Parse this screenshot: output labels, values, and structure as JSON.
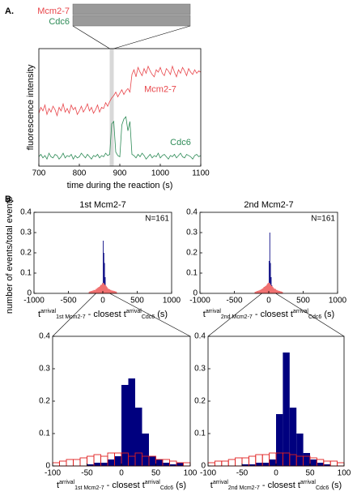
{
  "chart_data": [
    {
      "type": "line",
      "panel_label": "A.",
      "xlabel": "time during the reaction (s)",
      "ylabel": "fluorescence intensity",
      "xlim": [
        700,
        1100
      ],
      "xticks": [
        700,
        800,
        900,
        1000,
        1100
      ],
      "ylim": [
        0,
        100
      ],
      "highlight": [
        875,
        885
      ],
      "annotations": [
        "Mcm2-7",
        "Cdc6"
      ],
      "x": [
        700,
        705,
        710,
        715,
        720,
        725,
        730,
        735,
        740,
        745,
        750,
        755,
        760,
        765,
        770,
        775,
        780,
        785,
        790,
        795,
        800,
        805,
        810,
        815,
        820,
        825,
        830,
        835,
        840,
        845,
        850,
        855,
        860,
        865,
        870,
        875,
        880,
        885,
        890,
        895,
        900,
        905,
        910,
        915,
        920,
        925,
        930,
        935,
        940,
        945,
        950,
        955,
        960,
        965,
        970,
        975,
        980,
        985,
        990,
        995,
        1000,
        1005,
        1010,
        1015,
        1020,
        1025,
        1030,
        1035,
        1040,
        1045,
        1050,
        1055,
        1060,
        1065,
        1070,
        1075,
        1080,
        1085,
        1090,
        1095,
        1100
      ],
      "series": [
        {
          "name": "Mcm2-7",
          "color": "#e8454a",
          "values": [
            45,
            50,
            47,
            52,
            44,
            49,
            46,
            51,
            48,
            43,
            50,
            47,
            53,
            46,
            49,
            45,
            52,
            48,
            50,
            44,
            47,
            51,
            46,
            49,
            53,
            47,
            50,
            45,
            48,
            52,
            46,
            50,
            49,
            54,
            51,
            55,
            58,
            60,
            63,
            59,
            62,
            65,
            61,
            64,
            66,
            63,
            78,
            82,
            76,
            84,
            80,
            77,
            83,
            79,
            85,
            81,
            78,
            76,
            82,
            80,
            84,
            79,
            77,
            83,
            81,
            78,
            85,
            80,
            76,
            82,
            79,
            84,
            81,
            77,
            83,
            80,
            78,
            82,
            79,
            81,
            80
          ]
        },
        {
          "name": "Cdc6",
          "color": "#2e8b57",
          "values": [
            8,
            10,
            7,
            9,
            6,
            11,
            8,
            7,
            10,
            9,
            6,
            8,
            11,
            7,
            9,
            8,
            10,
            6,
            9,
            7,
            8,
            11,
            9,
            7,
            10,
            8,
            6,
            9,
            8,
            10,
            7,
            9,
            8,
            11,
            9,
            10,
            36,
            38,
            12,
            9,
            8,
            35,
            40,
            42,
            30,
            38,
            10,
            9,
            7,
            10,
            8,
            11,
            9,
            6,
            8,
            10,
            7,
            9,
            8,
            11,
            7,
            9,
            10,
            8,
            6,
            9,
            8,
            10,
            7,
            9,
            11,
            8,
            7,
            10,
            9,
            8,
            6,
            9,
            10,
            8,
            9
          ]
        }
      ]
    },
    {
      "type": "histogram",
      "panel_label": "B.",
      "title": "1st Mcm2-7",
      "ylabel": "number of events/total events",
      "annotation": "N=161",
      "xlabel": {
        "t": "t",
        "sup1": "arrival",
        "sub1": "1st Mcm2-7",
        "mid": " - closest t",
        "sup2": "arrival",
        "sub2": "Cdc6",
        "unit": " (s)"
      },
      "xlim": [
        -1000,
        1000
      ],
      "xticks": [
        -1000,
        -500,
        0,
        500,
        1000
      ],
      "ylim": [
        0,
        0.4
      ],
      "yticks": [
        0,
        0.1,
        0.2,
        0.3,
        0.4
      ],
      "bins": [
        -200,
        -190,
        -180,
        -170,
        -160,
        -150,
        -140,
        -130,
        -120,
        -110,
        -100,
        -90,
        -80,
        -70,
        -60,
        -50,
        -40,
        -30,
        -20,
        -10,
        0,
        10,
        20,
        30,
        40,
        50,
        60,
        70,
        80,
        90,
        100,
        110,
        120,
        130,
        140,
        150,
        160,
        170,
        180,
        190,
        200
      ],
      "series": [
        {
          "color": "#00007f",
          "filled": true,
          "values": [
            0,
            0,
            0.003,
            0,
            0,
            0.003,
            0,
            0,
            0.005,
            0,
            0,
            0.003,
            0,
            0.005,
            0,
            0.005,
            0.01,
            0.01,
            0.02,
            0.05,
            0.26,
            0.2,
            0.15,
            0.08,
            0.03,
            0.02,
            0.01,
            0.005,
            0.005,
            0,
            0.003,
            0,
            0.003,
            0,
            0,
            0.003,
            0,
            0,
            0,
            0
          ]
        },
        {
          "color": "#f07070",
          "filled": false,
          "values": [
            0.005,
            0.008,
            0.006,
            0.01,
            0.008,
            0.012,
            0.01,
            0.015,
            0.012,
            0.015,
            0.02,
            0.02,
            0.025,
            0.025,
            0.03,
            0.03,
            0.035,
            0.04,
            0.04,
            0.045,
            0.05,
            0.045,
            0.04,
            0.04,
            0.035,
            0.03,
            0.025,
            0.02,
            0.02,
            0.018,
            0.015,
            0.015,
            0.012,
            0.01,
            0.012,
            0.008,
            0.01,
            0.006,
            0.008,
            0.005
          ]
        }
      ]
    },
    {
      "type": "histogram",
      "title": "2nd Mcm2-7",
      "annotation": "N=161",
      "xlabel": {
        "t": "t",
        "sup1": "arrival",
        "sub1": "2nd Mcm2-7",
        "mid": " - closest t",
        "sup2": "arrival",
        "sub2": "Cdc6",
        "unit": " (s)"
      },
      "xlim": [
        -1000,
        1000
      ],
      "xticks": [
        -1000,
        -500,
        0,
        500,
        1000
      ],
      "ylim": [
        0,
        0.4
      ],
      "yticks": [
        0,
        0.1,
        0.2,
        0.3,
        0.4
      ],
      "bins": [
        -200,
        -190,
        -180,
        -170,
        -160,
        -150,
        -140,
        -130,
        -120,
        -110,
        -100,
        -90,
        -80,
        -70,
        -60,
        -50,
        -40,
        -30,
        -20,
        -10,
        0,
        10,
        20,
        30,
        40,
        50,
        60,
        70,
        80,
        90,
        100,
        110,
        120,
        130,
        140,
        150,
        160,
        170,
        180,
        190,
        200
      ],
      "series": [
        {
          "color": "#00007f",
          "filled": true,
          "values": [
            0,
            0,
            0,
            0.003,
            0,
            0,
            0.003,
            0,
            0,
            0,
            0.003,
            0,
            0.005,
            0,
            0.005,
            0.005,
            0.01,
            0.01,
            0.015,
            0.03,
            0.16,
            0.3,
            0.15,
            0.08,
            0.04,
            0.02,
            0.01,
            0.005,
            0.003,
            0.003,
            0,
            0.003,
            0,
            0,
            0.003,
            0,
            0,
            0,
            0,
            0
          ]
        },
        {
          "color": "#f07070",
          "filled": false,
          "values": [
            0.006,
            0.005,
            0.008,
            0.01,
            0.01,
            0.012,
            0.012,
            0.015,
            0.015,
            0.018,
            0.02,
            0.022,
            0.025,
            0.03,
            0.03,
            0.035,
            0.035,
            0.04,
            0.045,
            0.05,
            0.05,
            0.045,
            0.04,
            0.035,
            0.035,
            0.03,
            0.025,
            0.022,
            0.02,
            0.02,
            0.015,
            0.015,
            0.012,
            0.012,
            0.01,
            0.01,
            0.008,
            0.008,
            0.006,
            0.005
          ]
        }
      ]
    },
    {
      "type": "histogram",
      "xlabel": {
        "t": "t",
        "sup1": "arrival",
        "sub1": "1st Mcm2-7",
        "mid": " - closest t",
        "sup2": "arrival",
        "sub2": "Cdc6",
        "unit": " (s)"
      },
      "xlim": [
        -100,
        100
      ],
      "xticks": [
        -100,
        -50,
        0,
        50,
        100
      ],
      "ylim": [
        0,
        0.4
      ],
      "yticks": [
        0,
        0.1,
        0.2,
        0.3,
        0.4
      ],
      "bins": [
        -100,
        -90,
        -80,
        -70,
        -60,
        -50,
        -40,
        -30,
        -20,
        -10,
        0,
        10,
        20,
        30,
        40,
        50,
        60,
        70,
        80,
        90,
        100
      ],
      "series": [
        {
          "color": "#00007f",
          "filled": true,
          "values": [
            0,
            0,
            0,
            0,
            0,
            0.005,
            0.01,
            0.01,
            0.02,
            0.03,
            0.25,
            0.27,
            0.18,
            0.1,
            0.03,
            0.02,
            0.01,
            0.005,
            0.01,
            0
          ]
        },
        {
          "color": "#e02020",
          "filled": false,
          "values": [
            0.01,
            0.015,
            0.02,
            0.02,
            0.025,
            0.03,
            0.035,
            0.03,
            0.04,
            0.04,
            0.04,
            0.03,
            0.04,
            0.03,
            0.03,
            0.02,
            0.02,
            0.015,
            0.01,
            0.01
          ]
        }
      ]
    },
    {
      "type": "histogram",
      "xlabel": {
        "t": "t",
        "sup1": "arrival",
        "sub1": "2nd Mcm2-7",
        "mid": " - closest t",
        "sup2": "arrival",
        "sub2": "Cdc6",
        "unit": " (s)"
      },
      "xlim": [
        -100,
        100
      ],
      "xticks": [
        -100,
        -50,
        0,
        50,
        100
      ],
      "ylim": [
        0,
        0.4
      ],
      "yticks": [
        0,
        0.1,
        0.2,
        0.3,
        0.4
      ],
      "bins": [
        -100,
        -90,
        -80,
        -70,
        -60,
        -50,
        -40,
        -30,
        -20,
        -10,
        0,
        10,
        20,
        30,
        40,
        50,
        60,
        70,
        80,
        90,
        100
      ],
      "series": [
        {
          "color": "#00007f",
          "filled": true,
          "values": [
            0,
            0,
            0,
            0,
            0,
            0.005,
            0.005,
            0.01,
            0.01,
            0.02,
            0.16,
            0.35,
            0.18,
            0.1,
            0.04,
            0.02,
            0.01,
            0.005,
            0,
            0
          ]
        },
        {
          "color": "#e02020",
          "filled": false,
          "values": [
            0.01,
            0.015,
            0.015,
            0.02,
            0.025,
            0.025,
            0.03,
            0.035,
            0.035,
            0.04,
            0.04,
            0.04,
            0.035,
            0.03,
            0.03,
            0.025,
            0.02,
            0.015,
            0.015,
            0.01
          ]
        }
      ]
    }
  ]
}
